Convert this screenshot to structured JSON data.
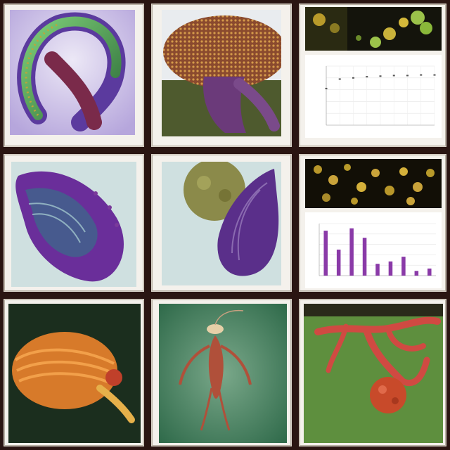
{
  "panels": [
    {
      "name": "purple-serpent",
      "colors": {
        "bg": "#cfc9e8",
        "body": "#7a4fb0",
        "accent": "#4c9a3a"
      }
    },
    {
      "name": "mushroom-cap",
      "colors": {
        "bg": "#f1ede6",
        "cap": "#8a4a2e",
        "stem": "#6b3a7a"
      }
    },
    {
      "name": "microscopy-with-line-chart",
      "colors": {
        "photo": "#1a1a10",
        "cells": "#9bc24a"
      }
    },
    {
      "name": "violet-organ",
      "colors": {
        "bg": "#c9dcdc",
        "body": "#6a2e9a"
      }
    },
    {
      "name": "olive-bulb-violet-organ",
      "colors": {
        "bg": "#c7dbdc",
        "bulb": "#8b8a4a",
        "body": "#5a2f8a"
      }
    },
    {
      "name": "microscopy-with-bar-chart",
      "colors": {
        "photo": "#151208",
        "cells": "#c9a33a"
      }
    },
    {
      "name": "orange-coral",
      "colors": {
        "bg": "#1d3320",
        "body": "#d77a2a"
      }
    },
    {
      "name": "red-crustacean",
      "colors": {
        "bg": "#4e8c6a",
        "body": "#b0503a"
      }
    },
    {
      "name": "red-branching-coral",
      "colors": {
        "bg": "#5e8f3e",
        "body": "#d04a42"
      }
    }
  ],
  "chart_data": [
    {
      "type": "scatter",
      "title": "",
      "xlabel": "",
      "ylabel": "",
      "x": [
        1,
        2,
        3,
        4,
        5,
        6,
        7,
        8,
        9
      ],
      "values": [
        0.62,
        0.78,
        0.8,
        0.82,
        0.83,
        0.84,
        0.84,
        0.85,
        0.85
      ],
      "ylim": [
        0,
        1
      ]
    },
    {
      "type": "bar",
      "title": "",
      "xlabel": "",
      "ylabel": "",
      "categories": [
        "1",
        "2",
        "3",
        "4",
        "5",
        "6",
        "7",
        "8",
        "9"
      ],
      "values": [
        0.95,
        0.55,
        1.0,
        0.8,
        0.25,
        0.3,
        0.4,
        0.1,
        0.15
      ],
      "ylim": [
        0,
        1.1
      ]
    }
  ]
}
